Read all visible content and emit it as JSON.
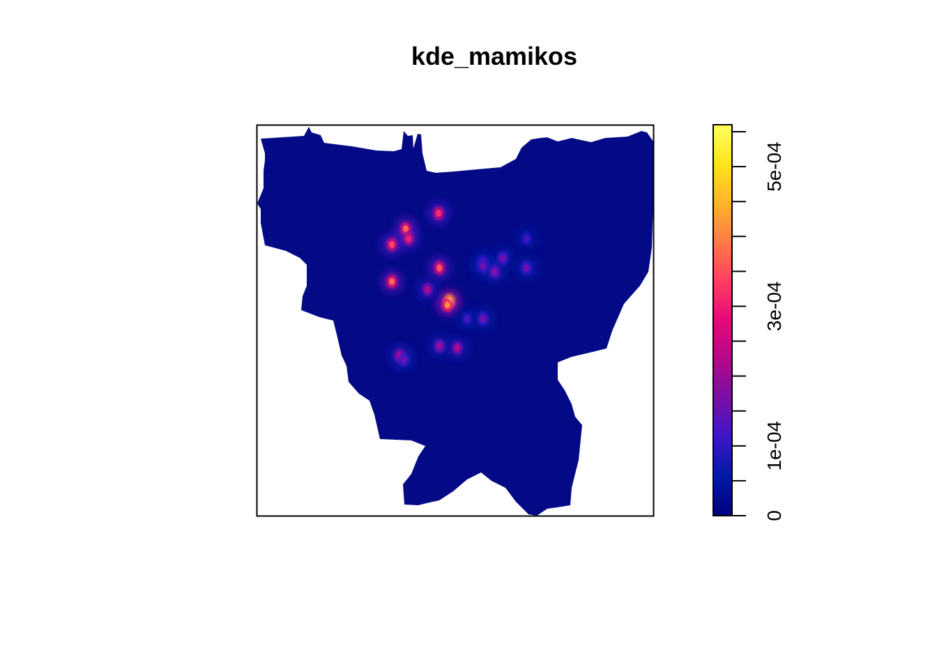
{
  "chart_data": {
    "type": "heatmap",
    "title": "kde_mamikos",
    "xlabel": "",
    "ylabel": "",
    "axes_shown": false,
    "legend_position": "right",
    "legend": {
      "type": "colorbar",
      "range": [
        0,
        0.00056
      ],
      "ticks": [
        0,
        5e-05,
        0.0001,
        0.00015,
        0.0002,
        0.00025,
        0.0003,
        0.00035,
        0.0004,
        0.00045,
        0.0005,
        0.00055
      ],
      "tick_labels": [
        {
          "value": 0,
          "label": "0"
        },
        {
          "value": 0.0001,
          "label": "1e-04"
        },
        {
          "value": 0.0003,
          "label": "3e-04"
        },
        {
          "value": 0.0005,
          "label": "5e-04"
        }
      ],
      "colormap": [
        "#000080",
        "#001aa6",
        "#3b17c8",
        "#7a0ea8",
        "#b5088a",
        "#e5097a",
        "#ff3e63",
        "#ff7a45",
        "#ffb32a",
        "#ffe41a",
        "#ffff60"
      ]
    },
    "region_color": "#040a86",
    "hotspots": [
      {
        "x": 0.458,
        "y": 0.225,
        "value": 0.00032
      },
      {
        "x": 0.375,
        "y": 0.265,
        "value": 0.00038
      },
      {
        "x": 0.382,
        "y": 0.29,
        "value": 0.0003
      },
      {
        "x": 0.34,
        "y": 0.305,
        "value": 0.00034
      },
      {
        "x": 0.46,
        "y": 0.365,
        "value": 0.00036
      },
      {
        "x": 0.34,
        "y": 0.4,
        "value": 0.00038
      },
      {
        "x": 0.485,
        "y": 0.45,
        "value": 0.00058
      },
      {
        "x": 0.48,
        "y": 0.46,
        "value": 0.00042
      },
      {
        "x": 0.43,
        "y": 0.42,
        "value": 0.00022
      },
      {
        "x": 0.62,
        "y": 0.34,
        "value": 0.00016
      },
      {
        "x": 0.57,
        "y": 0.35,
        "value": 0.00014
      },
      {
        "x": 0.57,
        "y": 0.36,
        "value": 0.00016
      },
      {
        "x": 0.6,
        "y": 0.375,
        "value": 0.00018
      },
      {
        "x": 0.68,
        "y": 0.365,
        "value": 0.00016
      },
      {
        "x": 0.68,
        "y": 0.29,
        "value": 0.00012
      },
      {
        "x": 0.57,
        "y": 0.495,
        "value": 0.00016
      },
      {
        "x": 0.53,
        "y": 0.495,
        "value": 0.00012
      },
      {
        "x": 0.46,
        "y": 0.565,
        "value": 0.0002
      },
      {
        "x": 0.505,
        "y": 0.57,
        "value": 0.00022
      },
      {
        "x": 0.36,
        "y": 0.59,
        "value": 0.00024
      },
      {
        "x": 0.37,
        "y": 0.6,
        "value": 0.00016
      }
    ]
  }
}
